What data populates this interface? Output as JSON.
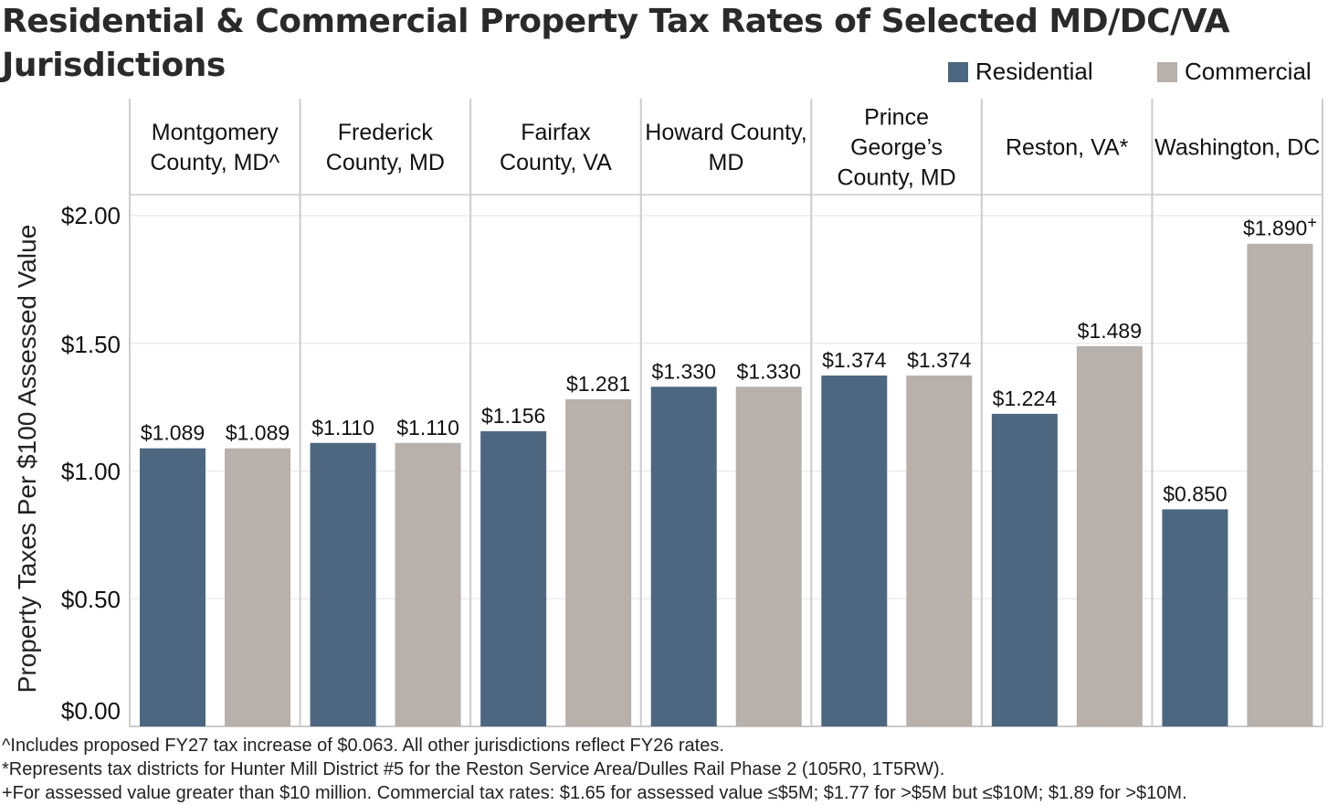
{
  "chart_data": {
    "type": "bar",
    "title": "Residential & Commercial Property Tax Rates of Selected MD/DC/VA Jurisdictions",
    "ylabel": "Property Taxes Per $100 Assessed Value",
    "ylim": [
      0,
      2.0
    ],
    "yticks": [
      "$0.00",
      "$0.50",
      "$1.00",
      "$1.50",
      "$2.00"
    ],
    "legend_position": "top-right",
    "categories": [
      "Montgomery County, MD^",
      "Frederick County, MD",
      "Fairfax County, VA",
      "Howard County, MD",
      "Prince George’s County, MD",
      "Reston, VA*",
      "Washington, DC"
    ],
    "series": [
      {
        "name": "Residential",
        "color": "#4e6780",
        "values": [
          1.089,
          1.11,
          1.156,
          1.33,
          1.374,
          1.224,
          0.85
        ],
        "labels": [
          "$1.089",
          "$1.110",
          "$1.156",
          "$1.330",
          "$1.374",
          "$1.224",
          "$0.850"
        ]
      },
      {
        "name": "Commercial",
        "color": "#b8b0ab",
        "values": [
          1.089,
          1.11,
          1.281,
          1.33,
          1.374,
          1.489,
          1.89
        ],
        "labels": [
          "$1.089",
          "$1.110",
          "$1.281",
          "$1.330",
          "$1.374",
          "$1.489",
          "$1.890+"
        ]
      }
    ],
    "grid": true
  },
  "footnotes": [
    "^Includes proposed FY27 tax increase of $0.063. All other jurisdictions reflect FY26 rates.",
    "*Represents tax districts for Hunter Mill District #5 for the Reston Service Area/Dulles Rail Phase 2 (105R0, 1T5RW).",
    "+For assessed value greater than $10 million. Commercial tax rates: $1.65 for assessed value ≤$5M; $1.77 for >$5M but ≤$10M; $1.89 for >$10M."
  ]
}
